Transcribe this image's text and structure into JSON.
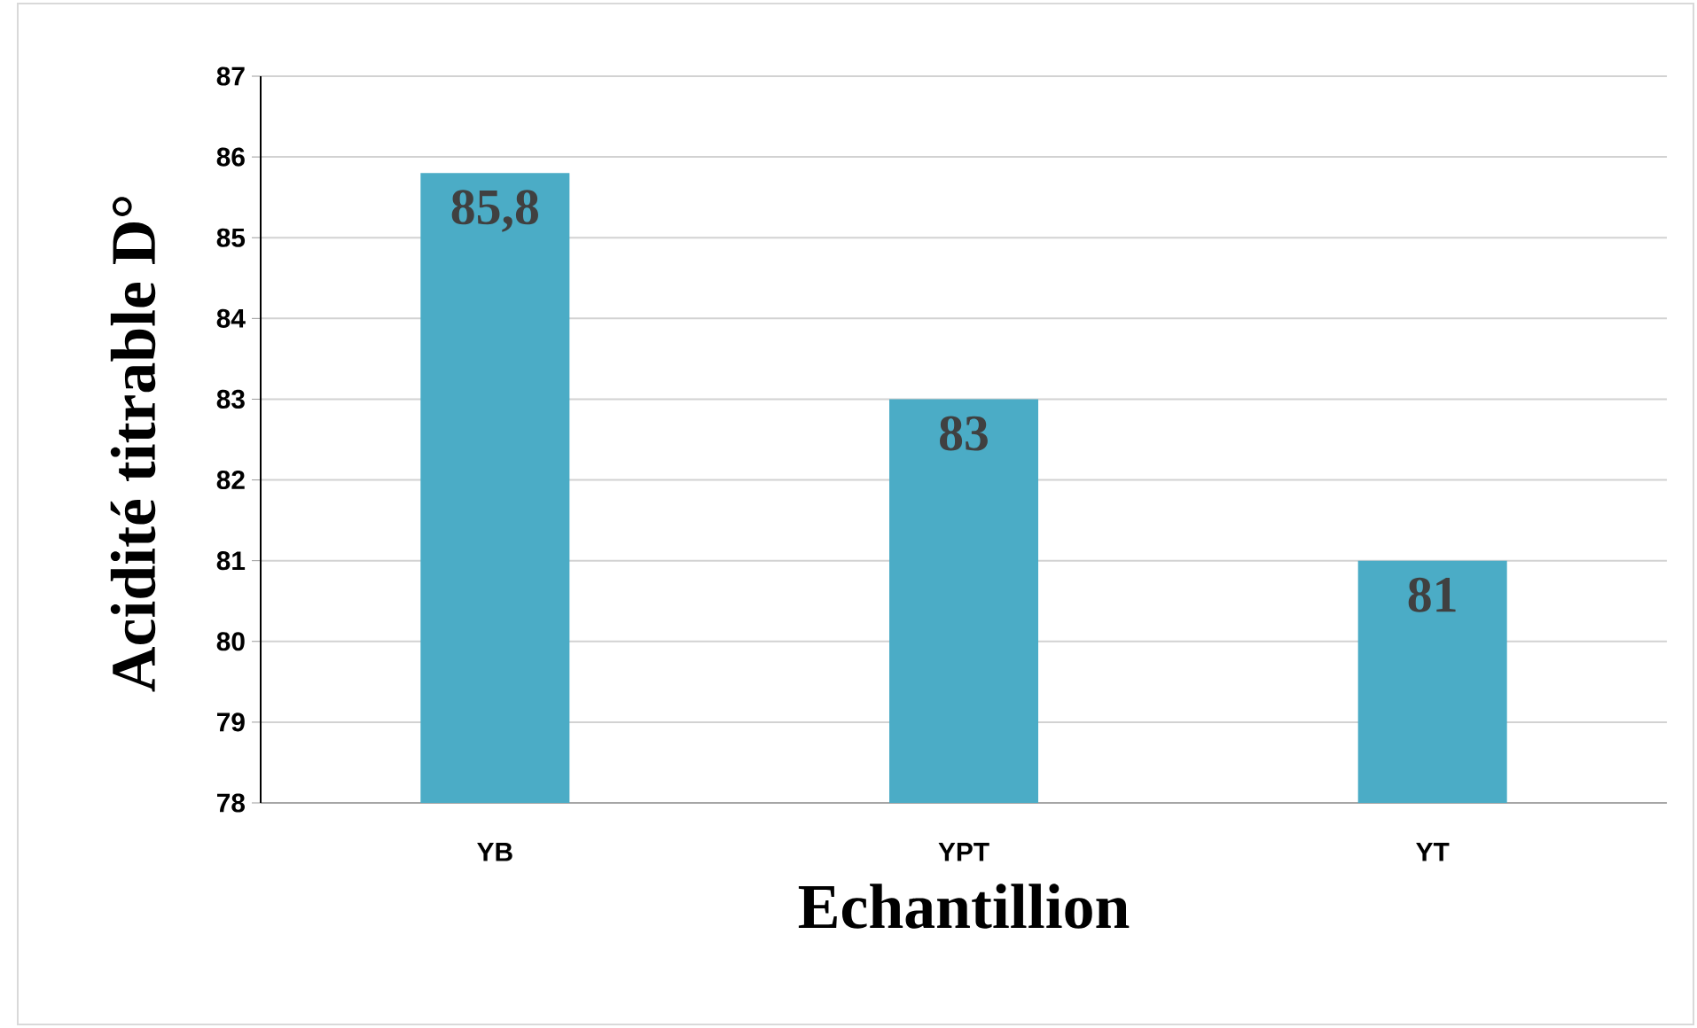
{
  "chart_data": {
    "type": "bar",
    "xlabel": "Echantillion",
    "ylabel": "Acidité titrable D°",
    "categories": [
      "YB",
      "YPT",
      "YT"
    ],
    "values": [
      85.8,
      83,
      81
    ],
    "value_labels": [
      "85,8",
      "83",
      "81"
    ],
    "color": "#4bacc6",
    "ylim": [
      78,
      87
    ],
    "yticks": [
      78,
      79,
      80,
      81,
      82,
      83,
      84,
      85,
      86,
      87
    ],
    "grid": "y"
  }
}
